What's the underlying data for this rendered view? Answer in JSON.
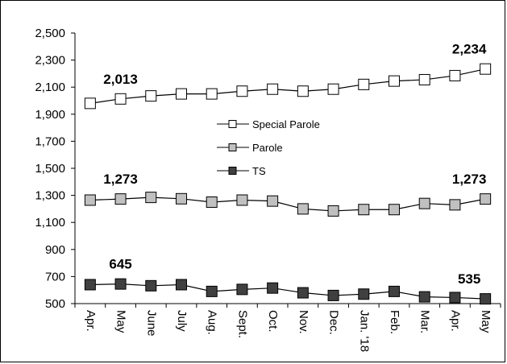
{
  "chart_data": {
    "type": "line",
    "categories": [
      "Apr.",
      "May",
      "June",
      "July",
      "Aug.",
      "Sept.",
      "Oct.",
      "Nov.",
      "Dec.",
      "Jan. '18",
      "Feb.",
      "Mar.",
      "Apr.",
      "May"
    ],
    "y_ticks": [
      "2,500",
      "2,300",
      "2,100",
      "1,900",
      "1,700",
      "1,500",
      "1,300",
      "1,100",
      "900",
      "700",
      "500"
    ],
    "ylim": [
      500,
      2500
    ],
    "grid": false,
    "legend_position": "center",
    "series": [
      {
        "name": "Special Parole",
        "color": "#ffffff",
        "values": [
          1980,
          2013,
          2035,
          2050,
          2050,
          2070,
          2085,
          2070,
          2085,
          2120,
          2145,
          2155,
          2185,
          2234
        ]
      },
      {
        "name": "Parole",
        "color": "#c0c0c0",
        "values": [
          1265,
          1273,
          1285,
          1275,
          1250,
          1265,
          1258,
          1200,
          1185,
          1195,
          1195,
          1240,
          1230,
          1273
        ]
      },
      {
        "name": "TS",
        "color": "#404040",
        "values": [
          640,
          645,
          632,
          640,
          590,
          605,
          615,
          580,
          560,
          570,
          590,
          550,
          545,
          535
        ]
      }
    ],
    "data_labels": [
      {
        "series": 0,
        "index": 1,
        "text": "2,013"
      },
      {
        "series": 0,
        "index": 13,
        "text": "2,234"
      },
      {
        "series": 1,
        "index": 1,
        "text": "1,273"
      },
      {
        "series": 1,
        "index": 13,
        "text": "1,273"
      },
      {
        "series": 2,
        "index": 1,
        "text": "645"
      },
      {
        "series": 2,
        "index": 13,
        "text": "535"
      }
    ]
  }
}
